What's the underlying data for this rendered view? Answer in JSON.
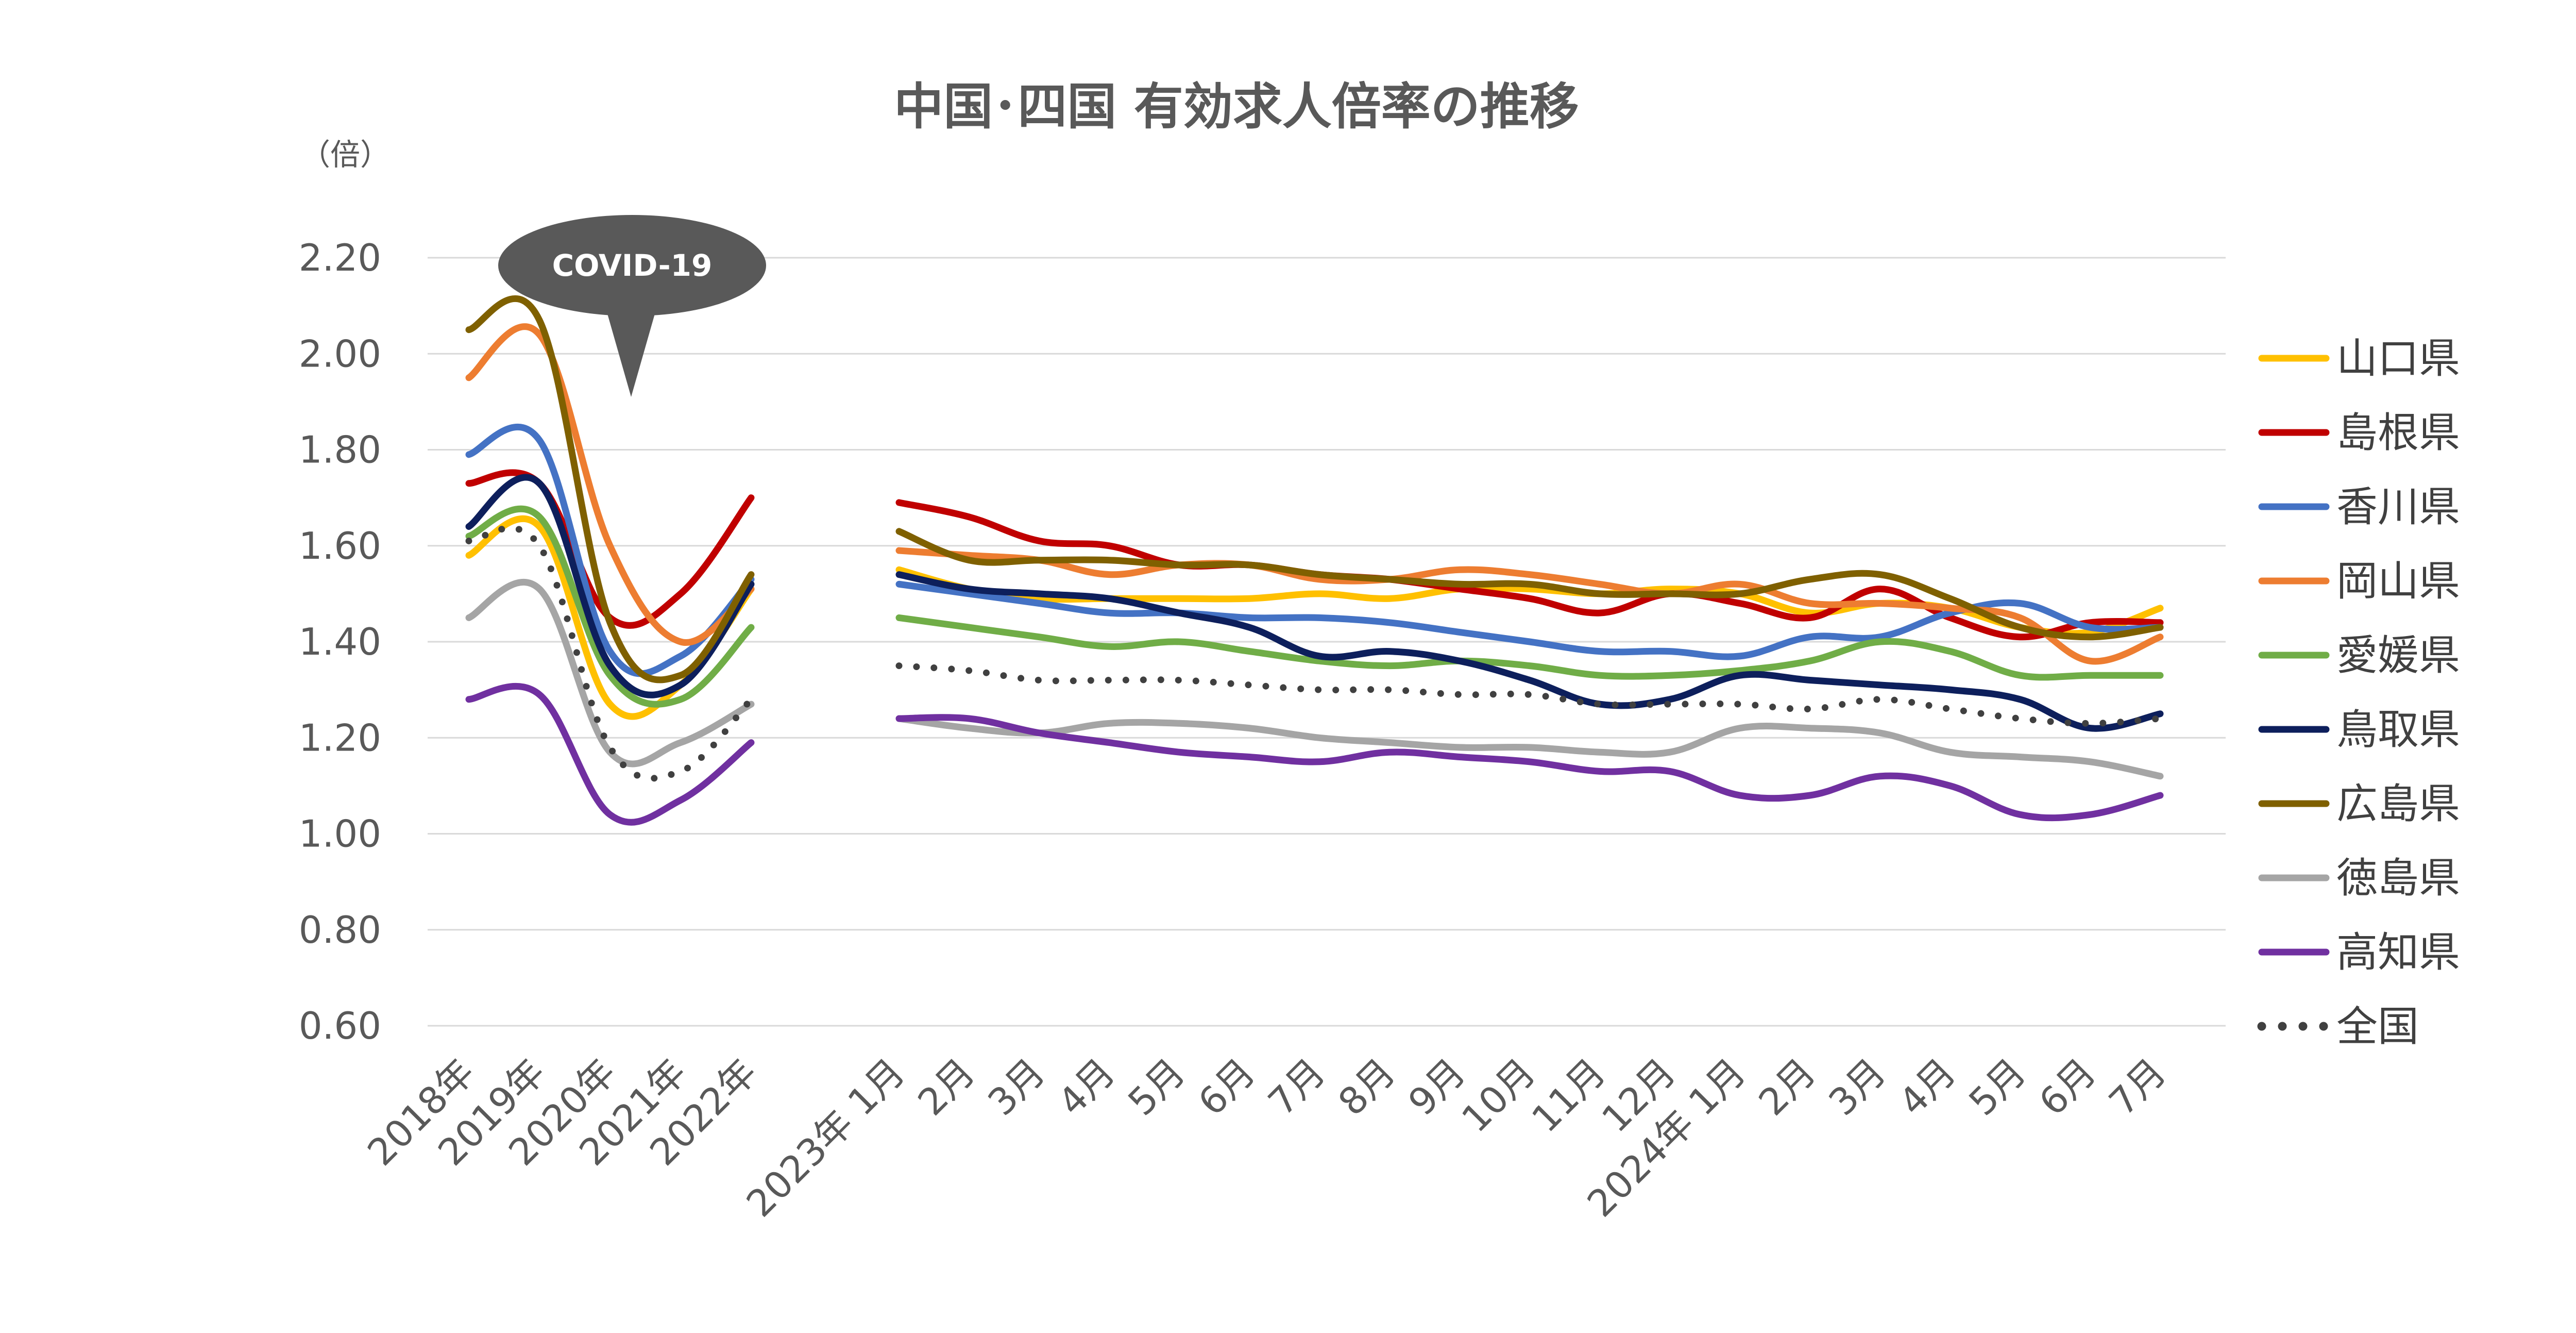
{
  "chart_data": {
    "type": "line",
    "title": "中国･四国 有効求人倍率の推移",
    "ylabel": "（倍）",
    "xlabel": "",
    "ylim": [
      0.6,
      2.2
    ],
    "yticks": [
      "2.20",
      "2.00",
      "1.80",
      "1.60",
      "1.40",
      "1.20",
      "1.00",
      "0.80",
      "0.60"
    ],
    "annual_categories": [
      "2018年",
      "2019年",
      "2020年",
      "2021年",
      "2022年"
    ],
    "monthly_categories": [
      "2023年 1月",
      "2月",
      "3月",
      "4月",
      "5月",
      "6月",
      "7月",
      "8月",
      "9月",
      "10月",
      "11月",
      "12月",
      "2024年 1月",
      "2月",
      "3月",
      "4月",
      "5月",
      "6月",
      "7月"
    ],
    "annotation": "COVID-19",
    "series": [
      {
        "name": "山口県",
        "color": "#FFC000",
        "dotted": false,
        "annual": [
          1.58,
          1.64,
          1.27,
          1.31,
          1.51
        ],
        "monthly": [
          1.55,
          1.51,
          1.49,
          1.49,
          1.49,
          1.49,
          1.5,
          1.49,
          1.51,
          1.51,
          1.5,
          1.51,
          1.5,
          1.46,
          1.48,
          1.47,
          1.43,
          1.42,
          1.47
        ]
      },
      {
        "name": "島根県",
        "color": "#C00000",
        "dotted": false,
        "annual": [
          1.73,
          1.73,
          1.45,
          1.5,
          1.7
        ],
        "monthly": [
          1.69,
          1.66,
          1.61,
          1.6,
          1.56,
          1.56,
          1.54,
          1.53,
          1.51,
          1.49,
          1.46,
          1.5,
          1.48,
          1.45,
          1.51,
          1.45,
          1.41,
          1.44,
          1.44
        ]
      },
      {
        "name": "香川県",
        "color": "#4472C4",
        "dotted": false,
        "annual": [
          1.79,
          1.82,
          1.38,
          1.37,
          1.53
        ],
        "monthly": [
          1.52,
          1.5,
          1.48,
          1.46,
          1.46,
          1.45,
          1.45,
          1.44,
          1.42,
          1.4,
          1.38,
          1.38,
          1.37,
          1.41,
          1.41,
          1.46,
          1.48,
          1.43,
          1.43
        ]
      },
      {
        "name": "岡山県",
        "color": "#ED7D31",
        "dotted": false,
        "annual": [
          1.95,
          2.04,
          1.6,
          1.4,
          1.51
        ],
        "monthly": [
          1.59,
          1.58,
          1.57,
          1.54,
          1.56,
          1.56,
          1.53,
          1.53,
          1.55,
          1.54,
          1.52,
          1.5,
          1.52,
          1.48,
          1.48,
          1.47,
          1.45,
          1.36,
          1.41
        ]
      },
      {
        "name": "愛媛県",
        "color": "#70AD47",
        "dotted": false,
        "annual": [
          1.62,
          1.66,
          1.33,
          1.28,
          1.43
        ],
        "monthly": [
          1.45,
          1.43,
          1.41,
          1.39,
          1.4,
          1.38,
          1.36,
          1.35,
          1.36,
          1.35,
          1.33,
          1.33,
          1.34,
          1.36,
          1.4,
          1.38,
          1.33,
          1.33,
          1.33
        ]
      },
      {
        "name": "鳥取県",
        "color": "#0D1F5C",
        "dotted": false,
        "annual": [
          1.64,
          1.73,
          1.35,
          1.31,
          1.52
        ],
        "monthly": [
          1.54,
          1.51,
          1.5,
          1.49,
          1.46,
          1.43,
          1.37,
          1.38,
          1.36,
          1.32,
          1.27,
          1.28,
          1.33,
          1.32,
          1.31,
          1.3,
          1.28,
          1.22,
          1.25
        ]
      },
      {
        "name": "広島県",
        "color": "#7F6000",
        "dotted": false,
        "annual": [
          2.05,
          2.07,
          1.44,
          1.33,
          1.54
        ],
        "monthly": [
          1.63,
          1.57,
          1.57,
          1.57,
          1.56,
          1.56,
          1.54,
          1.53,
          1.52,
          1.52,
          1.5,
          1.5,
          1.5,
          1.53,
          1.54,
          1.49,
          1.43,
          1.41,
          1.43
        ]
      },
      {
        "name": "徳島県",
        "color": "#A5A5A5",
        "dotted": false,
        "annual": [
          1.45,
          1.51,
          1.17,
          1.19,
          1.27
        ],
        "monthly": [
          1.24,
          1.22,
          1.21,
          1.23,
          1.23,
          1.22,
          1.2,
          1.19,
          1.18,
          1.18,
          1.17,
          1.17,
          1.22,
          1.22,
          1.21,
          1.17,
          1.16,
          1.15,
          1.12
        ]
      },
      {
        "name": "高知県",
        "color": "#7030A0",
        "dotted": false,
        "annual": [
          1.28,
          1.29,
          1.04,
          1.07,
          1.19
        ],
        "monthly": [
          1.24,
          1.24,
          1.21,
          1.19,
          1.17,
          1.16,
          1.15,
          1.17,
          1.16,
          1.15,
          1.13,
          1.13,
          1.08,
          1.08,
          1.12,
          1.1,
          1.04,
          1.04,
          1.08
        ]
      },
      {
        "name": "全国",
        "color": "#404040",
        "dotted": true,
        "annual": [
          1.61,
          1.6,
          1.18,
          1.13,
          1.28
        ],
        "monthly": [
          1.35,
          1.34,
          1.32,
          1.32,
          1.32,
          1.31,
          1.3,
          1.3,
          1.29,
          1.29,
          1.27,
          1.27,
          1.27,
          1.26,
          1.28,
          1.26,
          1.24,
          1.23,
          1.24
        ]
      }
    ]
  }
}
